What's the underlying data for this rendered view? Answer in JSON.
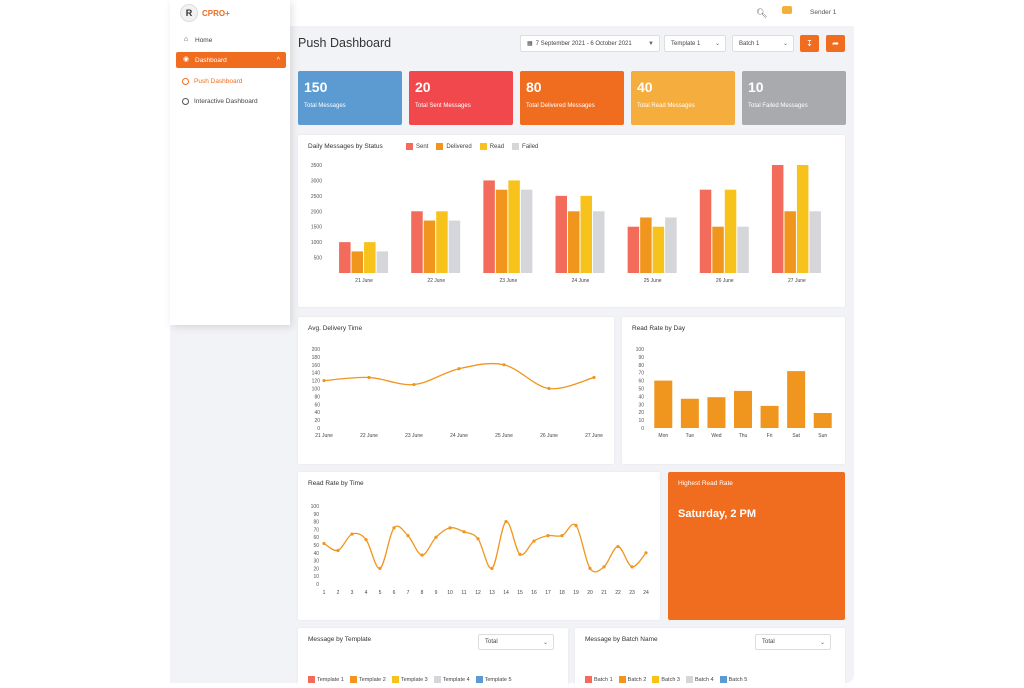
{
  "app": {
    "logo_text": "CPRO+",
    "logo_mark": "R"
  },
  "sidebar": {
    "items": [
      {
        "label": "Home",
        "icon": "home-icon"
      },
      {
        "label": "Dashboard",
        "icon": "dashboard-icon"
      },
      {
        "label": "Push Dashboard"
      },
      {
        "label": "Interactive Dashboard"
      }
    ]
  },
  "topbar": {
    "user": "Sender 1"
  },
  "header": {
    "title": "Push Dashboard",
    "date_range": "7 September 2021 - 6 October 2021",
    "template_select": "Template 1",
    "batch_select": "Batch 1"
  },
  "stats": [
    {
      "value": "150",
      "label": "Total Messages",
      "color": "#5b9bd1"
    },
    {
      "value": "20",
      "label": "Total Sent Messages",
      "color": "#f0484d"
    },
    {
      "value": "80",
      "label": "Total Delivered Messages",
      "color": "#f06d20"
    },
    {
      "value": "40",
      "label": "Total Read Messages",
      "color": "#f5ad3e"
    },
    {
      "value": "10",
      "label": "Total Failed Messages",
      "color": "#a9aaae"
    }
  ],
  "chart_data": [
    {
      "type": "bar",
      "title": "Daily Messages by Status",
      "categories": [
        "21 June",
        "22 June",
        "23 June",
        "24 June",
        "25 June",
        "26 June",
        "27 June"
      ],
      "yticks": [
        "500",
        "1000",
        "1500",
        "2000",
        "2500",
        "3000",
        "3500"
      ],
      "ylim": [
        0,
        3500
      ],
      "series": [
        {
          "name": "Sent",
          "color": "#f26b5b",
          "values": [
            1000,
            2000,
            3000,
            2500,
            1500,
            2700,
            3500
          ]
        },
        {
          "name": "Delivered",
          "color": "#f0961e",
          "values": [
            700,
            1700,
            2700,
            2000,
            1800,
            1500,
            2000
          ]
        },
        {
          "name": "Read",
          "color": "#f8c21c",
          "values": [
            1000,
            2000,
            3000,
            2500,
            1500,
            2700,
            3500
          ]
        },
        {
          "name": "Failed",
          "color": "#d4d6da",
          "values": [
            700,
            1700,
            2700,
            2000,
            1800,
            1500,
            2000
          ]
        }
      ]
    },
    {
      "type": "line",
      "title": "Avg. Delivery Time",
      "categories": [
        "21 June",
        "22 June",
        "23 June",
        "24 June",
        "25 June",
        "26 June",
        "27 June"
      ],
      "yticks": [
        "0",
        "20",
        "40",
        "60",
        "80",
        "100",
        "120",
        "140",
        "160",
        "180",
        "200"
      ],
      "ylim": [
        0,
        200
      ],
      "values": [
        120,
        128,
        110,
        150,
        160,
        100,
        128
      ],
      "color": "#f0961e"
    },
    {
      "type": "bar",
      "title": "Read Rate by Day",
      "categories": [
        "Mon",
        "Tue",
        "Wed",
        "Thu",
        "Fri",
        "Sat",
        "Sun"
      ],
      "yticks": [
        "0",
        "10",
        "20",
        "30",
        "40",
        "50",
        "60",
        "70",
        "80",
        "90",
        "100"
      ],
      "ylim": [
        0,
        100
      ],
      "values": [
        60,
        37,
        39,
        47,
        28,
        72,
        19
      ],
      "color": "#f0961e"
    },
    {
      "type": "line",
      "title": "Read Rate by Time",
      "categories": [
        "1",
        "2",
        "3",
        "4",
        "5",
        "6",
        "7",
        "8",
        "9",
        "10",
        "11",
        "12",
        "13",
        "14",
        "15",
        "16",
        "17",
        "18",
        "19",
        "20",
        "21",
        "22",
        "23",
        "24"
      ],
      "yticks": [
        "0",
        "10",
        "20",
        "30",
        "40",
        "50",
        "60",
        "70",
        "80",
        "90",
        "100"
      ],
      "ylim": [
        0,
        100
      ],
      "values": [
        52,
        43,
        64,
        57,
        20,
        72,
        62,
        37,
        60,
        72,
        67,
        58,
        20,
        80,
        38,
        55,
        62,
        62,
        75,
        20,
        22,
        48,
        22,
        40
      ],
      "color": "#f0961e"
    }
  ],
  "highlight": {
    "title": "Highest Read Rate",
    "value": "Saturday, 2 PM"
  },
  "template_card": {
    "title": "Message by Template",
    "select": "Total",
    "legend": [
      {
        "label": "Template 1",
        "color": "#f26b5b"
      },
      {
        "label": "Template 2",
        "color": "#f0961e"
      },
      {
        "label": "Template 3",
        "color": "#f8c21c"
      },
      {
        "label": "Template 4",
        "color": "#d4d6da"
      },
      {
        "label": "Template 5",
        "color": "#5b9bd1"
      }
    ]
  },
  "batch_card": {
    "title": "Message by Batch Name",
    "select": "Total",
    "legend": [
      {
        "label": "Batch 1",
        "color": "#f26b5b"
      },
      {
        "label": "Batch 2",
        "color": "#f0961e"
      },
      {
        "label": "Batch 3",
        "color": "#f8c21c"
      },
      {
        "label": "Batch 4",
        "color": "#d4d6da"
      },
      {
        "label": "Batch 5",
        "color": "#5b9bd1"
      }
    ]
  }
}
